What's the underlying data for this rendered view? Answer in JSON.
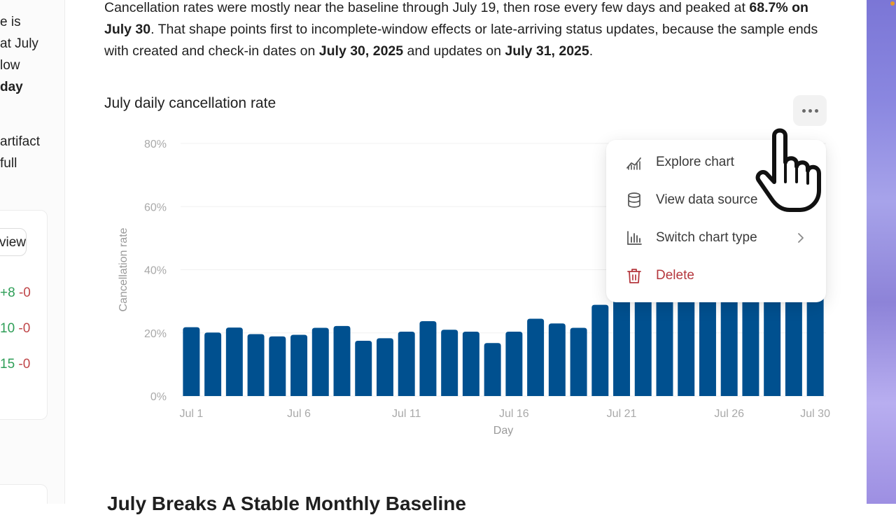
{
  "side_panel": {
    "lines": [
      {
        "text": "e is",
        "bold": false
      },
      {
        "text": "at July",
        "bold": false
      },
      {
        "text": "low",
        "bold": false
      },
      {
        "text": "day",
        "bold": true
      },
      {
        "text": "",
        "bold": false
      },
      {
        "text": "artifact",
        "bold": false
      },
      {
        "text": "full",
        "bold": false
      }
    ],
    "button_label": "view",
    "diffs": [
      {
        "plus": "+8",
        "minus": "-0"
      },
      {
        "plus": "10",
        "minus": "-0"
      },
      {
        "plus": "15",
        "minus": "-0"
      }
    ]
  },
  "paragraph": {
    "p1": "Cancellation rates were mostly near the baseline through July 19, then rose every few days and peaked at ",
    "b1": "68.7% on July 30",
    "p2": ". That shape points first to incomplete-window effects or late-arriving status updates, because the sample ends with created and check-in dates on ",
    "b2": "July 30, 2025",
    "p3": " and updates on ",
    "b3": "July 31, 2025",
    "p4": "."
  },
  "chart_title": "July daily cancellation rate",
  "chart_data": {
    "type": "bar",
    "title": "July daily cancellation rate",
    "xlabel": "Day",
    "ylabel": "Cancellation rate",
    "ylim": [
      0,
      80
    ],
    "yticks": [
      "0%",
      "20%",
      "40%",
      "60%",
      "80%"
    ],
    "xtick_labels": [
      "Jul 1",
      "Jul 6",
      "Jul 11",
      "Jul 16",
      "Jul 21",
      "Jul 26",
      "Jul 30"
    ],
    "xtick_days": [
      1,
      6,
      11,
      16,
      21,
      26,
      30
    ],
    "bar_color": "#00508f",
    "grid": true,
    "days": [
      1,
      2,
      3,
      4,
      5,
      6,
      7,
      8,
      9,
      10,
      11,
      12,
      13,
      14,
      15,
      16,
      17,
      18,
      19,
      20,
      21,
      22,
      23,
      24,
      25,
      26,
      27,
      28,
      29,
      30
    ],
    "values": [
      21.8,
      20.1,
      21.7,
      19.6,
      18.9,
      19.4,
      21.6,
      22.2,
      17.5,
      18.3,
      20.4,
      23.7,
      21.0,
      20.4,
      16.8,
      20.4,
      24.5,
      23.0,
      21.6,
      28.9,
      34.5,
      37.0,
      40.5,
      38.8,
      42.0,
      45.5,
      44.0,
      48.5,
      53.0,
      68.7
    ]
  },
  "menu": {
    "items": [
      {
        "label": "Explore chart",
        "icon": "explore-chart-icon",
        "danger": false
      },
      {
        "label": "View data source",
        "icon": "database-icon",
        "danger": false
      },
      {
        "label": "Switch chart type",
        "icon": "bar-chart-icon",
        "danger": false,
        "submenu": true
      },
      {
        "label": "Delete",
        "icon": "trash-icon",
        "danger": true
      }
    ]
  },
  "bottom_heading": "July Breaks A Stable Monthly Baseline"
}
